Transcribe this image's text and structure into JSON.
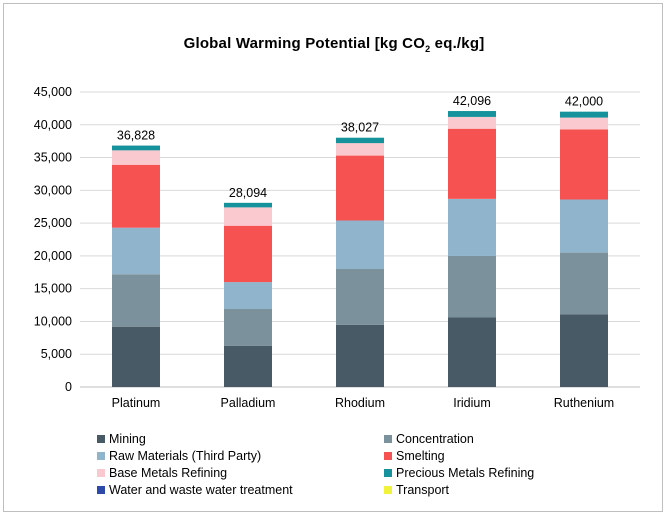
{
  "chart_data": {
    "type": "bar",
    "stacked": true,
    "title_main": "Global Warming Potential [kg CO",
    "title_sub": "2",
    "title_tail": " eq./kg]",
    "categories": [
      "Platinum",
      "Palladium",
      "Rhodium",
      "Iridium",
      "Ruthenium"
    ],
    "totals_labels": [
      "36,828",
      "28,094",
      "38,027",
      "42,096",
      "42,000"
    ],
    "totals": [
      36828,
      28094,
      38027,
      42096,
      42000
    ],
    "ylim": [
      0,
      45000
    ],
    "yticks": [
      0,
      5000,
      10000,
      15000,
      20000,
      25000,
      30000,
      35000,
      40000,
      45000
    ],
    "ytick_labels": [
      "0",
      "5,000",
      "10,000",
      "15,000",
      "20,000",
      "25,000",
      "30,000",
      "35,000",
      "40,000",
      "45,000"
    ],
    "grid": "horizontal",
    "legend_position": "bottom",
    "series": [
      {
        "name": "Mining",
        "color": "#475a66",
        "values": [
          9200,
          6300,
          9500,
          10600,
          11100
        ]
      },
      {
        "name": "Concentration",
        "color": "#7b929c",
        "values": [
          8000,
          5600,
          8500,
          9400,
          9400
        ]
      },
      {
        "name": "Raw Materials (Third Party)",
        "color": "#8fb4cc",
        "values": [
          7100,
          4100,
          7400,
          8700,
          8100
        ]
      },
      {
        "name": "Smelting",
        "color": "#f75252",
        "values": [
          9600,
          8600,
          9900,
          10700,
          10700
        ]
      },
      {
        "name": "Base Metals Refining",
        "color": "#fac9cf",
        "values": [
          2200,
          2800,
          1900,
          1800,
          1800
        ]
      },
      {
        "name": "Precious Metals Refining",
        "color": "#15929b",
        "values": [
          728,
          694,
          827,
          896,
          900
        ]
      },
      {
        "name": "Water and waste water treatment",
        "color": "#2e4aa8",
        "values": [
          0,
          0,
          0,
          0,
          0
        ]
      },
      {
        "name": "Transport",
        "color": "#f2f23a",
        "values": [
          0,
          0,
          0,
          0,
          0
        ]
      }
    ]
  }
}
